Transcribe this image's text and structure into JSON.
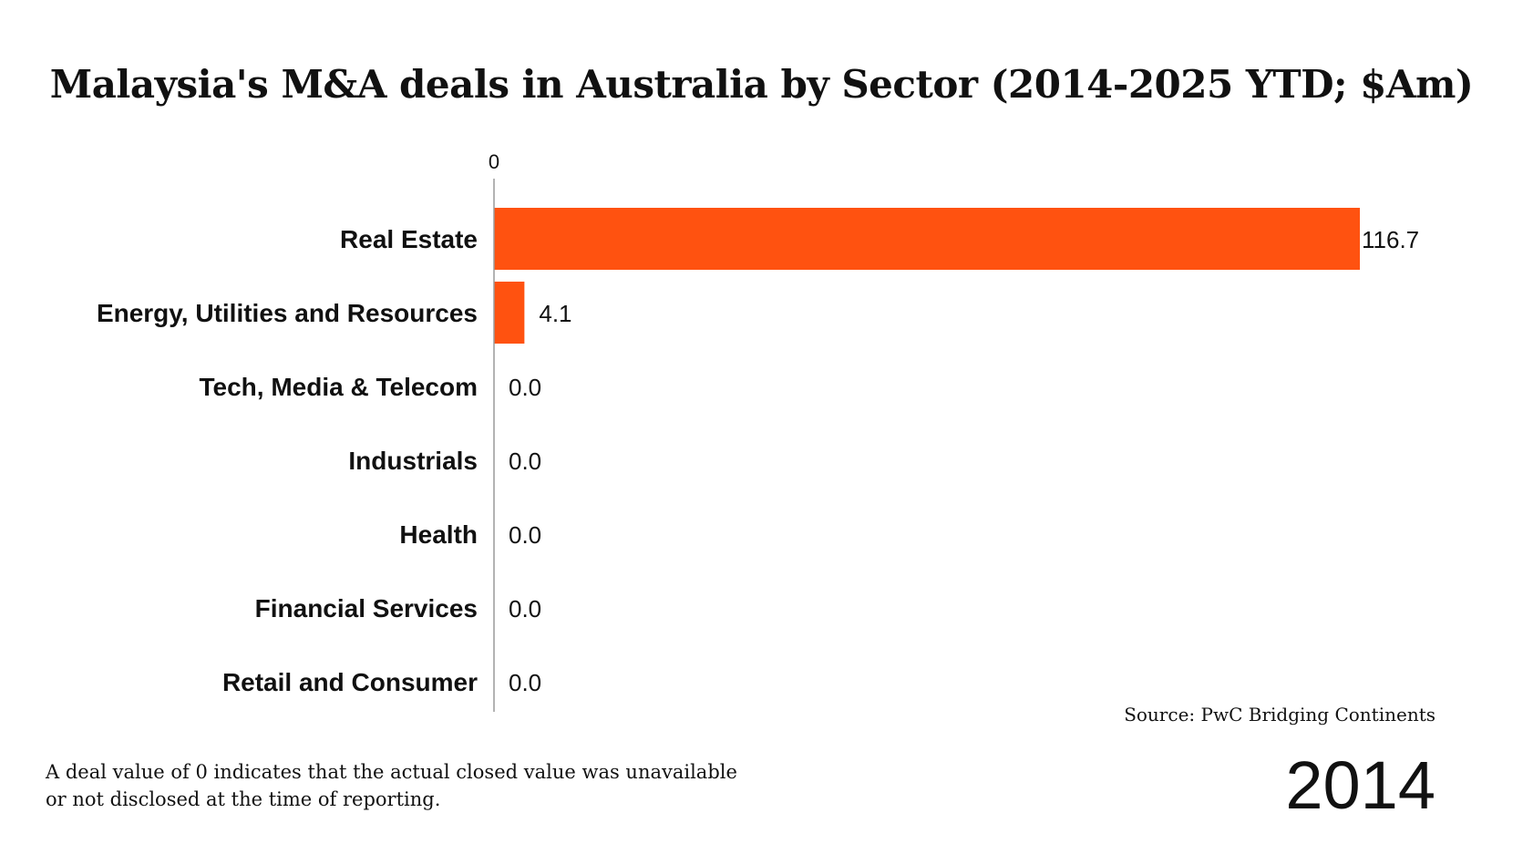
{
  "chart_data": {
    "type": "bar",
    "orientation": "horizontal",
    "title": "Malaysia's M&A deals in Australia by Sector (2014-2025 YTD; $Am)",
    "categories": [
      "Real Estate",
      "Energy, Utilities and Resources",
      "Tech, Media & Telecom",
      "Industrials",
      "Health",
      "Financial Services",
      "Retail and Consumer"
    ],
    "values": [
      116.7,
      4.1,
      0.0,
      0.0,
      0.0,
      0.0,
      0.0
    ],
    "value_labels": [
      "116.7",
      "4.1",
      "0.0",
      "0.0",
      "0.0",
      "0.0",
      "0.0"
    ],
    "xticks": [
      "0"
    ],
    "xlim": [
      0,
      116.7
    ],
    "bar_color": "#FF5210",
    "grid": false,
    "legend": "none"
  },
  "source": "Source: PwC Bridging Continents",
  "footnote": "A deal value of 0 indicates that the actual closed value was unavailable or not disclosed at the time of reporting.",
  "year": "2014"
}
